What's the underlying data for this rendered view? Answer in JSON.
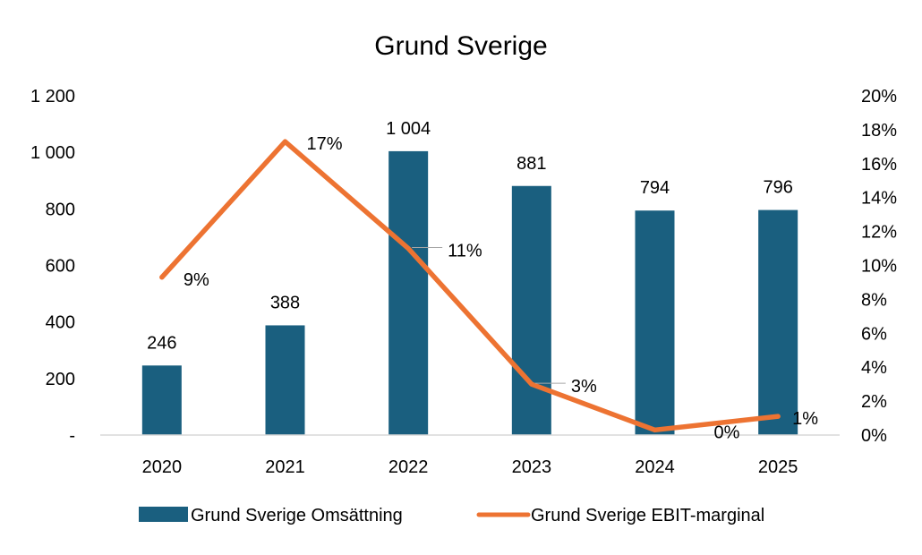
{
  "chart_data": {
    "type": "bar",
    "title": "Grund Sverige",
    "categories": [
      "2020",
      "2021",
      "2022",
      "2023",
      "2024",
      "2025"
    ],
    "series": [
      {
        "name": "Grund Sverige Omsättning",
        "type": "bar",
        "axis": "left",
        "values": [
          246,
          388,
          1004,
          881,
          794,
          796
        ],
        "labels": [
          "246",
          "388",
          "1 004",
          "881",
          "794",
          "796"
        ],
        "color": "#1a5f7f"
      },
      {
        "name": "Grund Sverige EBIT-marginal",
        "type": "line",
        "axis": "right",
        "values": [
          9.3,
          17.3,
          11.0,
          3.0,
          0.3,
          1.1
        ],
        "labels": [
          "9%",
          "17%",
          "11%",
          "3%",
          "0%",
          "1%"
        ],
        "color": "#ed7332"
      }
    ],
    "y_left": {
      "ylim": [
        0,
        1200
      ],
      "ticks": [
        0,
        200,
        400,
        600,
        800,
        1000,
        1200
      ],
      "tick_labels": [
        "-",
        "200",
        "400",
        "600",
        "800",
        "1 000",
        "1 200"
      ]
    },
    "y_right": {
      "ylim": [
        0,
        20
      ],
      "ticks": [
        0,
        2,
        4,
        6,
        8,
        10,
        12,
        14,
        16,
        18,
        20
      ],
      "tick_labels": [
        "0%",
        "2%",
        "4%",
        "6%",
        "8%",
        "10%",
        "12%",
        "14%",
        "16%",
        "18%",
        "20%"
      ]
    },
    "xlabel": "",
    "ylabel": "",
    "grid": false,
    "legend_position": "bottom"
  }
}
